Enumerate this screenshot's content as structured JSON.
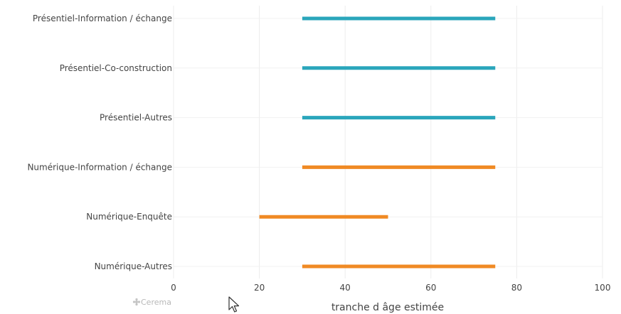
{
  "chart_data": {
    "type": "dumbbell",
    "categories": [
      "Présentiel-Information / échange",
      "Présentiel-Co-construction",
      "Présentiel-Autres",
      "Numérique-Information / échange",
      "Numérique-Enquête",
      "Numérique-Autres"
    ],
    "ranges": [
      {
        "start": 30,
        "end": 75,
        "group": "Présentiel"
      },
      {
        "start": 30,
        "end": 75,
        "group": "Présentiel"
      },
      {
        "start": 30,
        "end": 75,
        "group": "Présentiel"
      },
      {
        "start": 30,
        "end": 75,
        "group": "Numérique"
      },
      {
        "start": 20,
        "end": 50,
        "group": "Numérique"
      },
      {
        "start": 30,
        "end": 75,
        "group": "Numérique"
      }
    ],
    "colors": {
      "Présentiel": "#2aa6bb",
      "Numérique": "#f08a24"
    },
    "xlim": [
      0,
      100
    ],
    "xticks": [
      0,
      20,
      40,
      60,
      80,
      100
    ],
    "xlabel": "tranche d âge estimée",
    "grid": true
  },
  "watermark": {
    "text": "Cerema"
  },
  "icons": {
    "cursor": "mouse-pointer-icon",
    "watermark": "cerema-logo-icon"
  }
}
